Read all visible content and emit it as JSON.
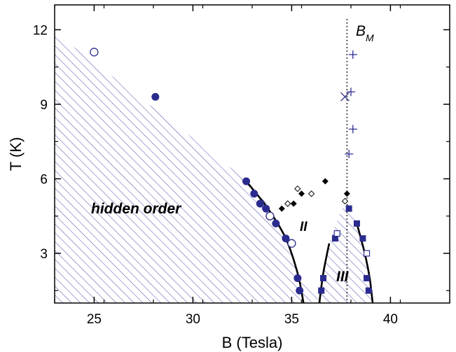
{
  "chart_data": {
    "type": "scatter",
    "xlabel": "B (Tesla)",
    "ylabel": "T (K)",
    "xlim": [
      23,
      43
    ],
    "ylim": [
      1.0,
      13.0
    ],
    "xticks": [
      "25",
      "30",
      "35",
      "40"
    ],
    "yticks": [
      "3",
      "6",
      "9",
      "12"
    ],
    "annotations": {
      "hidden_order": "hidden order",
      "phase_II": "II",
      "phase_III": "III",
      "bm_base": "B",
      "bm_sub": "M"
    },
    "bm_line_x": 37.8,
    "series": [
      {
        "marker": "open-circle",
        "color": "#2b2b8f",
        "points": [
          [
            25.0,
            11.1
          ],
          [
            33.9,
            4.5
          ],
          [
            35.0,
            3.4
          ]
        ]
      },
      {
        "marker": "filled-circle",
        "color": "#2b2b8f",
        "points": [
          [
            28.1,
            9.3
          ],
          [
            32.7,
            5.9
          ],
          [
            33.1,
            5.4
          ],
          [
            33.4,
            5.0
          ],
          [
            33.7,
            4.8
          ],
          [
            34.2,
            4.2
          ],
          [
            34.7,
            3.6
          ],
          [
            35.3,
            2.0
          ],
          [
            35.4,
            1.5
          ]
        ]
      },
      {
        "marker": "filled-square",
        "color": "#2b2b8f",
        "points": [
          [
            36.6,
            2.0
          ],
          [
            36.5,
            1.5
          ],
          [
            37.2,
            3.6
          ],
          [
            37.9,
            4.8
          ],
          [
            38.3,
            4.2
          ],
          [
            38.6,
            3.6
          ],
          [
            38.8,
            2.0
          ],
          [
            38.9,
            1.5
          ]
        ]
      },
      {
        "marker": "open-square",
        "color": "#2b2b8f",
        "points": [
          [
            37.3,
            3.8
          ],
          [
            38.8,
            3.0
          ]
        ]
      },
      {
        "marker": "filled-diamond",
        "color": "#000000",
        "points": [
          [
            34.5,
            4.8
          ],
          [
            35.1,
            5.0
          ],
          [
            35.5,
            5.4
          ],
          [
            36.7,
            5.9
          ],
          [
            37.8,
            5.4
          ]
        ]
      },
      {
        "marker": "open-diamond",
        "color": "#000000",
        "points": [
          [
            34.8,
            5.0
          ],
          [
            35.3,
            5.6
          ],
          [
            36.0,
            5.4
          ],
          [
            37.7,
            5.1
          ]
        ]
      },
      {
        "marker": "plus",
        "color": "#2b2b8f",
        "points": [
          [
            38.1,
            11.0
          ],
          [
            38.0,
            9.5
          ],
          [
            38.1,
            8.0
          ],
          [
            37.9,
            7.0
          ]
        ]
      },
      {
        "marker": "cross",
        "color": "#2b2b8f",
        "points": [
          [
            37.7,
            9.3
          ]
        ]
      }
    ],
    "boundaries": [
      [
        [
          32.6,
          6.0
        ],
        [
          33.8,
          4.8
        ],
        [
          34.7,
          3.6
        ],
        [
          35.3,
          2.2
        ],
        [
          35.6,
          1.0
        ]
      ],
      [
        [
          36.4,
          1.0
        ],
        [
          36.6,
          2.2
        ],
        [
          36.9,
          3.4
        ]
      ],
      [
        [
          38.3,
          4.2
        ],
        [
          38.7,
          3.0
        ],
        [
          38.95,
          2.0
        ],
        [
          39.1,
          1.0
        ]
      ]
    ],
    "hatched_regions": [
      [
        [
          23,
          11.9
        ],
        [
          32.6,
          6.0
        ],
        [
          33.8,
          4.8
        ],
        [
          34.7,
          3.6
        ],
        [
          35.3,
          2.2
        ],
        [
          35.6,
          1.0
        ],
        [
          23,
          1.0
        ]
      ],
      [
        [
          36.4,
          1.0
        ],
        [
          36.6,
          2.2
        ],
        [
          36.9,
          3.4
        ],
        [
          37.3,
          4.3
        ],
        [
          37.6,
          4.85
        ],
        [
          37.9,
          4.95
        ],
        [
          38.3,
          4.2
        ],
        [
          38.7,
          3.0
        ],
        [
          38.95,
          2.0
        ],
        [
          39.1,
          1.0
        ]
      ]
    ],
    "colors": {
      "hatch": "#4a4aa8",
      "marker": "#2b2b8f"
    }
  }
}
